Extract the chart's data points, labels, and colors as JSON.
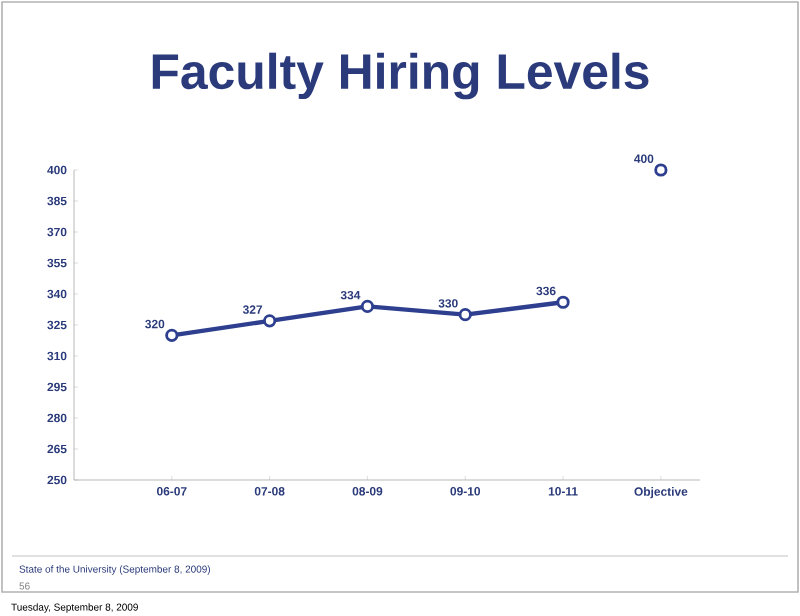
{
  "chart_data": {
    "type": "line",
    "title": "Faculty Hiring Levels",
    "categories": [
      "06-07",
      "07-08",
      "08-09",
      "09-10",
      "10-11",
      "Objective"
    ],
    "series": [
      {
        "color": "#2e3f8f",
        "values": [
          320,
          327,
          334,
          330,
          336,
          null
        ]
      },
      {
        "type": "scatter",
        "color": "#2e3f8f",
        "values": [
          null,
          null,
          null,
          null,
          null,
          400
        ]
      }
    ],
    "ylim": [
      250,
      400
    ],
    "yticks": [
      250,
      265,
      280,
      295,
      310,
      325,
      340,
      355,
      370,
      385,
      400
    ],
    "marker": "circle",
    "line_style": "solid",
    "data_labels": true,
    "annotations": [
      "State of the University (September 8, 2009)",
      "56",
      "Tuesday, September 8, 2009"
    ]
  }
}
